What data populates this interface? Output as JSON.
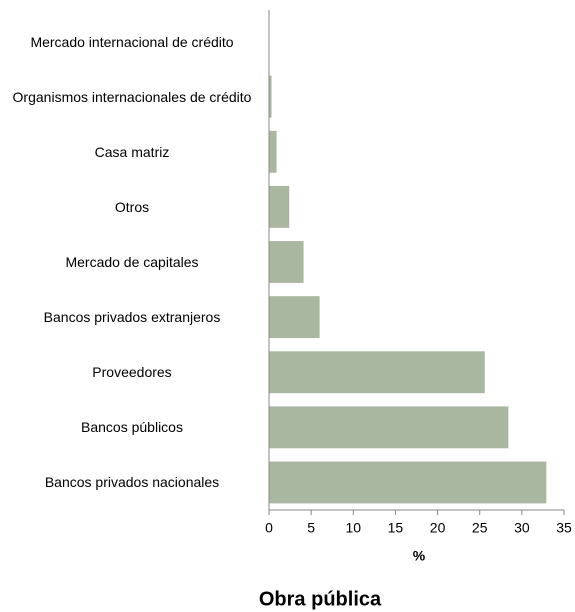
{
  "chart_data": {
    "type": "bar",
    "orientation": "horizontal",
    "title": "Obra pública",
    "x_label": "%",
    "categories": [
      "Mercado internacional de crédito",
      "Organismos internacionales de crédito",
      "Casa matriz",
      "Otros",
      "Mercado de capitales",
      "Bancos privados extranjeros",
      "Proveedores",
      "Bancos públicos",
      "Bancos privados nacionales"
    ],
    "values": [
      0,
      0.3,
      0.9,
      2.4,
      4.1,
      6.0,
      25.6,
      28.4,
      32.9
    ],
    "color": "#a9b7a0",
    "xlim": [
      0,
      35
    ],
    "xticks": [
      0,
      5,
      10,
      15,
      20,
      25,
      30,
      35
    ],
    "grid": false
  }
}
